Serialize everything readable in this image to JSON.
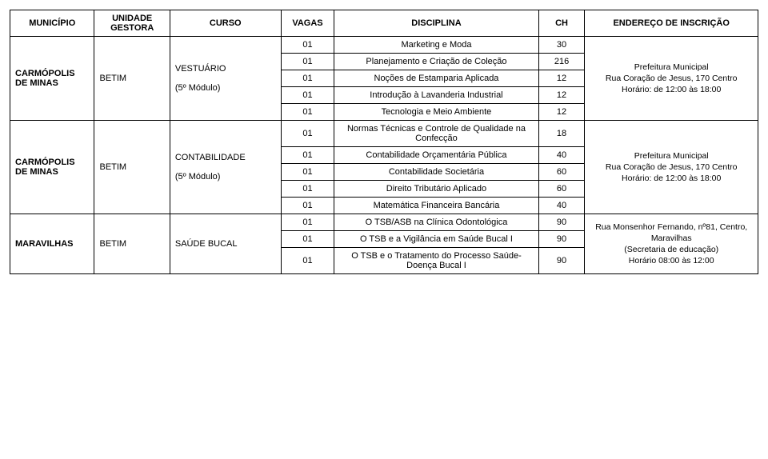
{
  "headers": {
    "municipio": "MUNICÍPIO",
    "unidade": "UNIDADE GESTORA",
    "curso": "CURSO",
    "vagas": "VAGAS",
    "disciplina": "DISCIPLINA",
    "ch": "CH",
    "endereco": "ENDEREÇO DE INSCRIÇÃO"
  },
  "groups": [
    {
      "municipio": "CARMÓPOLIS DE MINAS",
      "gestora": "BETIM",
      "curso_line1": "VESTUÁRIO",
      "curso_line2": "(5º Módulo)",
      "endereco_line1": "Prefeitura Municipal",
      "endereco_line2": "Rua Coração de Jesus, 170 Centro",
      "endereco_line3": "Horário: de 12:00 às 18:00",
      "rows": [
        {
          "vagas": "01",
          "disc": "Marketing e Moda",
          "ch": "30"
        },
        {
          "vagas": "01",
          "disc": "Planejamento e Criação de Coleção",
          "ch": "216"
        },
        {
          "vagas": "01",
          "disc": "Noções de Estamparia Aplicada",
          "ch": "12"
        },
        {
          "vagas": "01",
          "disc": "Introdução à Lavanderia Industrial",
          "ch": "12"
        },
        {
          "vagas": "01",
          "disc": "Tecnologia e Meio Ambiente",
          "ch": "12"
        }
      ]
    },
    {
      "municipio": "CARMÓPOLIS DE MINAS",
      "gestora": "BETIM",
      "curso_line1": "CONTABILIDADE",
      "curso_line2": "(5º Módulo)",
      "endereco_line1": "Prefeitura Municipal",
      "endereco_line2": "Rua Coração de Jesus, 170 Centro",
      "endereco_line3": "Horário: de 12:00 às 18:00",
      "rows": [
        {
          "vagas": "01",
          "disc": "Normas Técnicas e Controle de Qualidade na Confecção",
          "ch": "18"
        },
        {
          "vagas": "01",
          "disc": "Contabilidade Orçamentária Pública",
          "ch": "40"
        },
        {
          "vagas": "01",
          "disc": "Contabilidade Societária",
          "ch": "60"
        },
        {
          "vagas": "01",
          "disc": "Direito Tributário Aplicado",
          "ch": "60"
        },
        {
          "vagas": "01",
          "disc": "Matemática Financeira Bancária",
          "ch": "40"
        }
      ]
    },
    {
      "municipio": "MARAVILHAS",
      "gestora": "BETIM",
      "curso_line1": "SAÚDE BUCAL",
      "curso_line2": "",
      "endereco_line1": "Rua Monsenhor Fernando, nº81, Centro, Maravilhas",
      "endereco_line2": "(Secretaria de educação)",
      "endereco_line3": "Horário  08:00 às 12:00",
      "rows": [
        {
          "vagas": "01",
          "disc": "O TSB/ASB na Clínica Odontológica",
          "ch": "90"
        },
        {
          "vagas": "01",
          "disc": "O TSB e a Vigilância em Saúde Bucal I",
          "ch": "90"
        },
        {
          "vagas": "01",
          "disc": "O TSB e o Tratamento do Processo Saúde-Doença Bucal I",
          "ch": "90"
        }
      ]
    }
  ]
}
